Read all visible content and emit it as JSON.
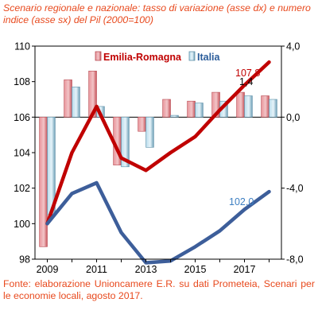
{
  "title": "Scenario regionale e nazionale: tasso di variazione (asse dx) e numero indice (asse sx) del Pil (2000=100)",
  "source": "Fonte: elaborazione Unioncamere E.R. su dati Prometeia, Scenari per le economie locali, agosto 2017.",
  "chart_data": {
    "type": "bar+line",
    "x": [
      2009,
      2010,
      2011,
      2012,
      2013,
      2014,
      2015,
      2016,
      2017,
      2018
    ],
    "xticks": [
      "2009",
      "2011",
      "2013",
      "2015",
      "2017"
    ],
    "left_axis": {
      "ylim": [
        98,
        110
      ],
      "ticks": [
        "98",
        "100",
        "102",
        "104",
        "106",
        "108",
        "110"
      ]
    },
    "right_axis": {
      "ylim": [
        -8,
        4
      ],
      "ticks": [
        "-8,0",
        "-4,0",
        "0,0",
        "4,0"
      ]
    },
    "bar_series": [
      {
        "name": "Emilia-Romagna",
        "color": "#e8949a",
        "values": [
          -7.3,
          2.1,
          2.6,
          -2.7,
          -0.8,
          1.0,
          0.9,
          1.4,
          1.4,
          1.2
        ]
      },
      {
        "name": "Italia",
        "color": "#b8dcec",
        "values": [
          -5.5,
          1.7,
          0.6,
          -2.8,
          -1.7,
          0.1,
          0.8,
          0.9,
          1.2,
          1.0
        ]
      }
    ],
    "line_series": [
      {
        "name": "Emilia-Romagna index",
        "color": "#c00000",
        "values": [
          100.0,
          104.0,
          106.6,
          103.7,
          103.0,
          104.0,
          104.9,
          106.4,
          107.8,
          109.1
        ]
      },
      {
        "name": "Italia index",
        "color": "#3d5e9a",
        "values": [
          100.0,
          101.7,
          102.3,
          99.5,
          97.8,
          97.9,
          98.7,
          99.6,
          100.8,
          101.8
        ]
      }
    ],
    "annotations": [
      {
        "text": "107,8",
        "color": "#c00000"
      },
      {
        "text": "1,4",
        "color": "#000000"
      },
      {
        "text": "102,0",
        "color": "#3d7fc2"
      }
    ],
    "legend_position": "top"
  }
}
